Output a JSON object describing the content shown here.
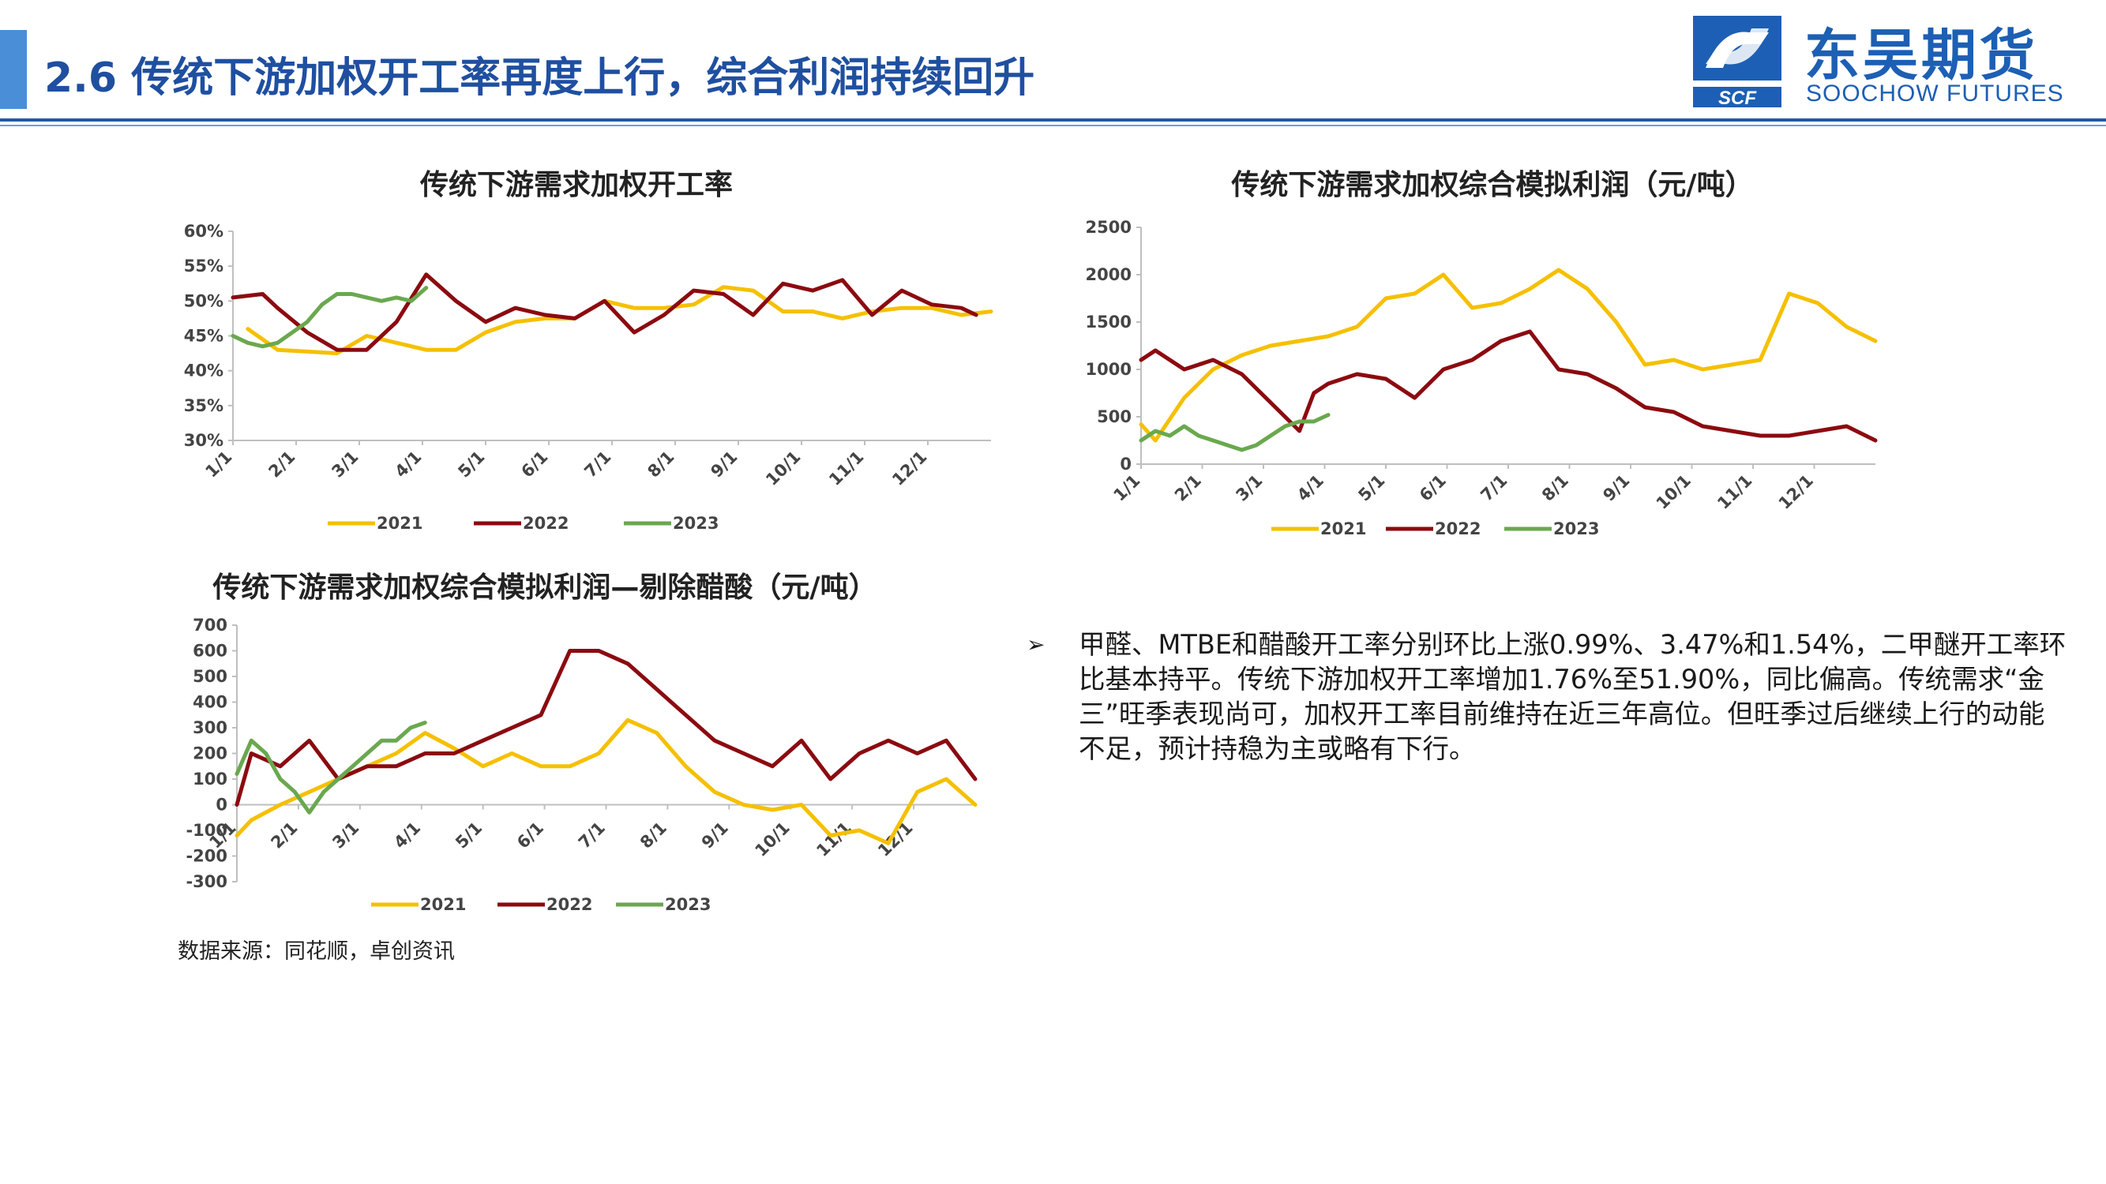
{
  "slide": {
    "title": "2.6 传统下游加权开工率再度上行，综合利润持续回升",
    "logo": {
      "cn": "东吴期货",
      "en": "SOOCHOW FUTURES",
      "mark": "SCF"
    },
    "source": "数据来源：同花顺，卓创资讯",
    "bullet": "甲醛、MTBE和醋酸开工率分别环比上涨0.99%、3.47%和1.54%，二甲醚开工率环比基本持平。传统下游加权开工率增加1.76%至51.90%，同比偏高。传统需求“金三”旺季表现尚可，加权开工率目前维持在近三年高位。但旺季过后继续上行的动能不足，预计持稳为主或略有下行。"
  },
  "colors": {
    "y2021": "#f5c000",
    "y2022": "#8b0a10",
    "y2023": "#6aa84f",
    "axis": "#bfbfbf"
  },
  "chart_data": [
    {
      "type": "line",
      "title": "传统下游需求加权开工率",
      "xlabel": "",
      "ylabel": "",
      "x_ticks": [
        "1/1",
        "2/1",
        "3/1",
        "4/1",
        "5/1",
        "6/1",
        "7/1",
        "8/1",
        "9/1",
        "10/1",
        "11/1",
        "12/1"
      ],
      "y_ticks": [
        "30%",
        "35%",
        "40%",
        "45%",
        "50%",
        "55%",
        "60%"
      ],
      "ylim": [
        30,
        60
      ],
      "legend": [
        "2021",
        "2022",
        "2023"
      ],
      "legend_position": "bottom",
      "series": [
        {
          "name": "2021",
          "x": [
            2,
            4,
            8,
            10,
            12,
            14,
            16,
            18,
            20,
            22,
            24,
            26,
            28,
            30,
            32,
            34,
            36,
            38,
            40,
            42,
            44,
            46,
            48,
            50,
            52
          ],
          "y": [
            46,
            43,
            42.5,
            45,
            44,
            43,
            43,
            45.5,
            47,
            47.5,
            47.5,
            50,
            49,
            49,
            49.5,
            52,
            51.5,
            48.5,
            48.5,
            47.5,
            48.5,
            49,
            49,
            48,
            48.5
          ]
        },
        {
          "name": "2022",
          "x": [
            1,
            3,
            4,
            6,
            8,
            10,
            12,
            14,
            16,
            18,
            20,
            22,
            24,
            26,
            28,
            30,
            32,
            34,
            36,
            38,
            40,
            42,
            44,
            46,
            48,
            50,
            51
          ],
          "y": [
            50.5,
            51,
            49,
            45.5,
            43,
            43,
            47,
            53.8,
            50,
            47,
            49,
            48,
            47.5,
            50,
            45.5,
            48,
            51.5,
            51,
            48,
            52.5,
            51.5,
            53,
            48,
            51.5,
            49.5,
            49,
            48
          ]
        },
        {
          "name": "2023",
          "x": [
            1,
            2,
            3,
            4,
            5,
            6,
            7,
            8,
            9,
            10,
            11,
            12,
            13,
            14
          ],
          "y": [
            45,
            44,
            43.5,
            44,
            45.5,
            47,
            49.5,
            51,
            51,
            50.5,
            50,
            50.5,
            50,
            51.9
          ]
        }
      ]
    },
    {
      "type": "line",
      "title": "传统下游需求加权综合模拟利润（元/吨）",
      "xlabel": "",
      "ylabel": "",
      "x_ticks": [
        "1/1",
        "2/1",
        "3/1",
        "4/1",
        "5/1",
        "6/1",
        "7/1",
        "8/1",
        "9/1",
        "10/1",
        "11/1",
        "12/1"
      ],
      "y_ticks": [
        "0",
        "500",
        "1000",
        "1500",
        "2000",
        "2500"
      ],
      "ylim": [
        0,
        2500
      ],
      "legend": [
        "2021",
        "2022",
        "2023"
      ],
      "legend_position": "bottom",
      "series": [
        {
          "name": "2021",
          "x": [
            1,
            2,
            4,
            6,
            8,
            10,
            12,
            14,
            16,
            18,
            20,
            22,
            24,
            26,
            28,
            30,
            32,
            34,
            36,
            38,
            40,
            42,
            44,
            46,
            48,
            50,
            52
          ],
          "y": [
            420,
            250,
            700,
            1000,
            1150,
            1250,
            1300,
            1350,
            1450,
            1750,
            1800,
            2000,
            1650,
            1700,
            1850,
            2050,
            1850,
            1500,
            1050,
            1100,
            1000,
            1050,
            1100,
            1800,
            1700,
            1450,
            1300
          ]
        },
        {
          "name": "2022",
          "x": [
            1,
            2,
            4,
            6,
            8,
            10,
            12,
            13,
            14,
            16,
            18,
            20,
            22,
            24,
            26,
            28,
            30,
            32,
            34,
            36,
            38,
            40,
            42,
            44,
            46,
            48,
            50,
            52
          ],
          "y": [
            1100,
            1200,
            1000,
            1100,
            950,
            650,
            350,
            750,
            850,
            950,
            900,
            700,
            1000,
            1100,
            1300,
            1400,
            1000,
            950,
            800,
            600,
            550,
            400,
            350,
            300,
            300,
            350,
            400,
            250
          ]
        },
        {
          "name": "2023",
          "x": [
            1,
            2,
            3,
            4,
            5,
            6,
            7,
            8,
            9,
            10,
            11,
            12,
            13,
            14
          ],
          "y": [
            250,
            350,
            300,
            400,
            300,
            250,
            200,
            150,
            200,
            300,
            400,
            450,
            450,
            520
          ]
        }
      ]
    },
    {
      "type": "line",
      "title": "传统下游需求加权综合模拟利润—剔除醋酸（元/吨）",
      "xlabel": "",
      "ylabel": "",
      "x_ticks": [
        "1/1",
        "2/1",
        "3/1",
        "4/1",
        "5/1",
        "6/1",
        "7/1",
        "8/1",
        "9/1",
        "10/1",
        "11/1",
        "12/1"
      ],
      "y_ticks": [
        "-300",
        "-200",
        "-100",
        "0",
        "100",
        "200",
        "300",
        "400",
        "500",
        "600",
        "700"
      ],
      "ylim": [
        -300,
        700
      ],
      "legend": [
        "2021",
        "2022",
        "2023"
      ],
      "legend_position": "bottom",
      "series": [
        {
          "name": "2021",
          "x": [
            1,
            2,
            4,
            6,
            8,
            10,
            12,
            14,
            16,
            18,
            20,
            22,
            24,
            26,
            28,
            30,
            32,
            34,
            36,
            38,
            40,
            42,
            44,
            46,
            48,
            50,
            52
          ],
          "y": [
            -120,
            -60,
            0,
            50,
            100,
            150,
            200,
            280,
            220,
            150,
            200,
            150,
            150,
            200,
            330,
            280,
            150,
            50,
            0,
            -20,
            0,
            -120,
            -100,
            -150,
            50,
            100,
            0
          ]
        },
        {
          "name": "2022",
          "x": [
            1,
            2,
            4,
            6,
            8,
            10,
            12,
            14,
            16,
            18,
            20,
            22,
            24,
            26,
            28,
            30,
            32,
            34,
            36,
            38,
            40,
            42,
            44,
            46,
            48,
            50,
            52
          ],
          "y": [
            0,
            200,
            150,
            250,
            100,
            150,
            150,
            200,
            200,
            250,
            300,
            350,
            600,
            600,
            550,
            450,
            350,
            250,
            200,
            150,
            250,
            100,
            200,
            250,
            200,
            250,
            100
          ]
        },
        {
          "name": "2023",
          "x": [
            1,
            2,
            3,
            4,
            5,
            6,
            7,
            8,
            9,
            10,
            11,
            12,
            13,
            14
          ],
          "y": [
            120,
            250,
            200,
            100,
            50,
            -30,
            50,
            100,
            150,
            200,
            250,
            250,
            300,
            320
          ]
        }
      ]
    }
  ]
}
